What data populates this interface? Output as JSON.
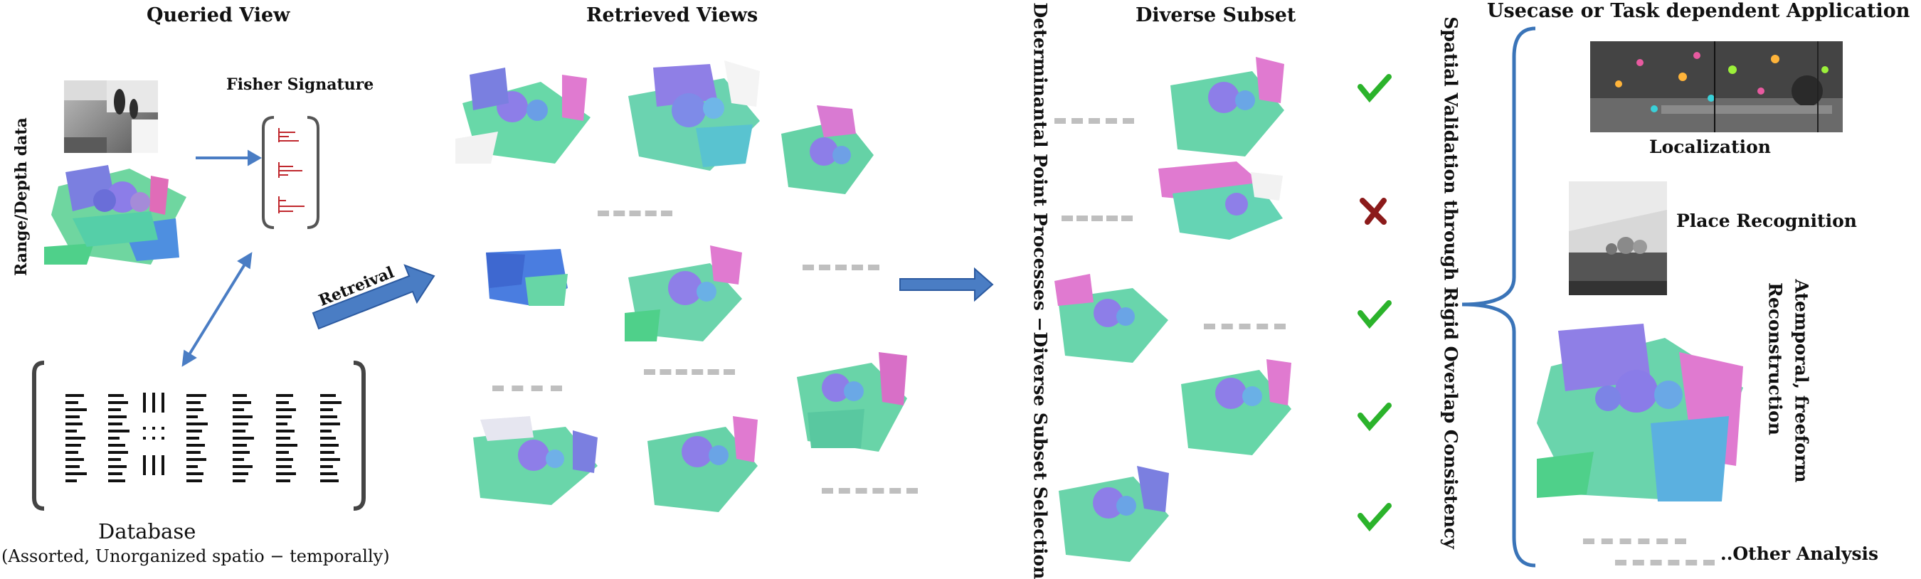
{
  "titles": {
    "queried_view": "Queried View",
    "retrieved_views": "Retrieved Views",
    "diverse_subset": "Diverse Subset",
    "application": "Usecase or Task dependent Application"
  },
  "queried": {
    "range_label": "Range/Depth data",
    "fisher_label": "Fisher Signature",
    "retrieval_label": "Retreival"
  },
  "database": {
    "title": "Database",
    "subtitle": "(Assorted, Unorganized spatio − temporally)"
  },
  "vertical_labels": {
    "dpp": "Determinantal Point Processes −Diverse Subset Selection",
    "spatial": "Spatial Validation through Rigid Overlap Consistency"
  },
  "validation_marks": [
    "check",
    "cross",
    "check",
    "check",
    "check"
  ],
  "applications": {
    "localization": "Localization",
    "place_recognition": "Place Recognition",
    "reconstruction_line1": "Atemporal, freeform",
    "reconstruction_line2": "Reconstruction",
    "other": "..Other Analysis"
  },
  "colors": {
    "arrow_blue": "#4a7dc4",
    "brace_blue": "#3a74b8",
    "check_green": "#2bb32b",
    "cross_red": "#8b1a1a",
    "bar_red": "#c0282e",
    "dash_gray": "#bfbfbf"
  }
}
